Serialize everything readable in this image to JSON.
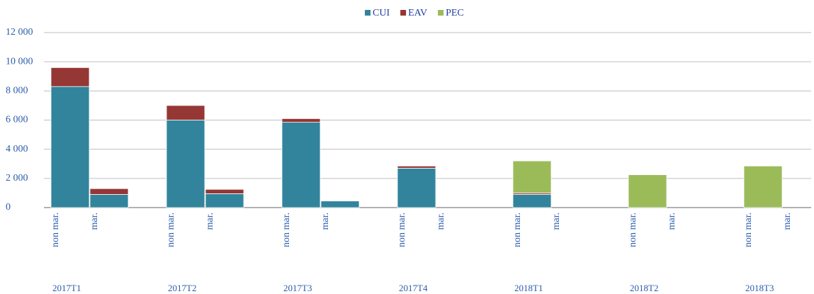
{
  "chart_data": {
    "type": "stacked-bar",
    "groups": [
      "2017T1",
      "2017T2",
      "2017T3",
      "2017T4",
      "2018T1",
      "2018T2",
      "2018T3"
    ],
    "categories": [
      "non mar.",
      "mar.",
      "non mar.",
      "mar.",
      "non mar.",
      "mar.",
      "non mar.",
      "mar.",
      "non mar.",
      "mar.",
      "non mar.",
      "mar.",
      "non mar.",
      "mar."
    ],
    "series": [
      {
        "name": "CUI",
        "color": "#31849b",
        "values": [
          8300,
          900,
          6000,
          950,
          5850,
          450,
          2700,
          0,
          900,
          0,
          0,
          0,
          0,
          0
        ]
      },
      {
        "name": "EAV",
        "color": "#953735",
        "values": [
          1300,
          400,
          1000,
          300,
          250,
          0,
          150,
          0,
          100,
          0,
          0,
          0,
          0,
          0
        ]
      },
      {
        "name": "PEC",
        "color": "#9bbb59",
        "values": [
          0,
          0,
          0,
          0,
          0,
          0,
          0,
          0,
          2200,
          0,
          2250,
          0,
          2850,
          0
        ]
      }
    ],
    "ylim": [
      0,
      12000
    ],
    "yticks": [
      0,
      {
        "value": 2000,
        "label": "2 000"
      },
      {
        "value": 4000,
        "label": "4 000"
      },
      {
        "value": 6000,
        "label": "6 000"
      },
      {
        "value": 8000,
        "label": "8 000"
      },
      {
        "value": 10000,
        "label": "10 000"
      },
      {
        "value": 12000,
        "label": "12 000"
      }
    ],
    "grid": true,
    "legend": "top"
  }
}
